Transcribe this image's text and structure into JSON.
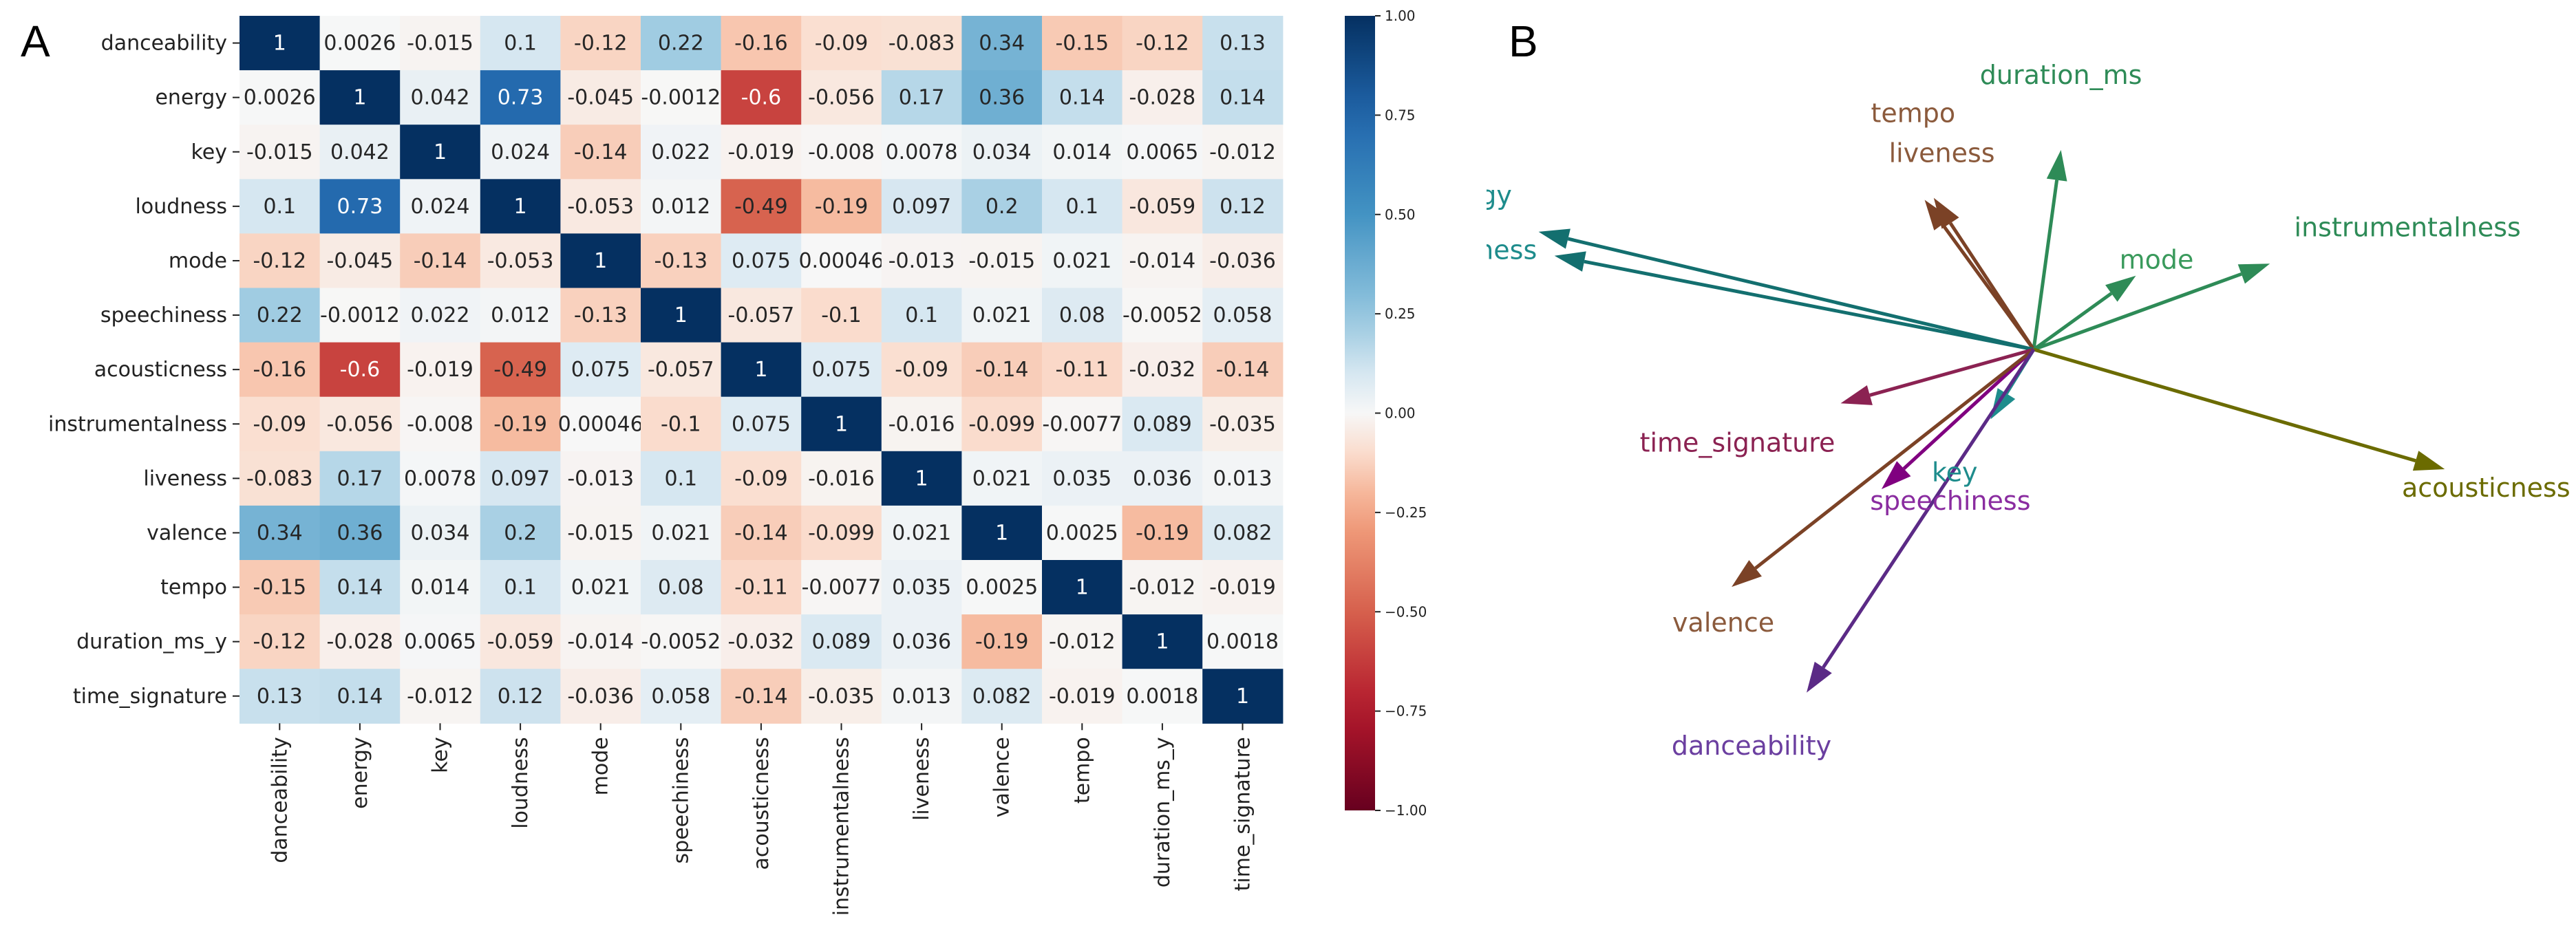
{
  "panels": {
    "a": "A",
    "b": "B"
  },
  "chart_data": [
    {
      "type": "heatmap",
      "rows": [
        "danceability",
        "energy",
        "key",
        "loudness",
        "mode",
        "speechiness",
        "acousticness",
        "instrumentalness",
        "liveness",
        "valence",
        "tempo",
        "duration_ms_y",
        "time_signature"
      ],
      "columns": [
        "danceability",
        "energy",
        "key",
        "loudness",
        "mode",
        "speechiness",
        "acousticness",
        "instrumentalness",
        "liveness",
        "valence",
        "tempo",
        "duration_ms_y",
        "time_signature"
      ],
      "values": [
        [
          1,
          0.0026,
          -0.015,
          0.1,
          -0.12,
          0.22,
          -0.16,
          -0.09,
          -0.083,
          0.34,
          -0.15,
          -0.12,
          0.13
        ],
        [
          0.0026,
          1,
          0.042,
          0.73,
          -0.045,
          -0.0012,
          -0.6,
          -0.056,
          0.17,
          0.36,
          0.14,
          -0.028,
          0.14
        ],
        [
          -0.015,
          0.042,
          1,
          0.024,
          -0.14,
          0.022,
          -0.019,
          -0.008,
          0.0078,
          0.034,
          0.014,
          0.0065,
          -0.012
        ],
        [
          0.1,
          0.73,
          0.024,
          1,
          -0.053,
          0.012,
          -0.49,
          -0.19,
          0.097,
          0.2,
          0.1,
          -0.059,
          0.12
        ],
        [
          -0.12,
          -0.045,
          -0.14,
          -0.053,
          1,
          -0.13,
          0.075,
          0.00046,
          -0.013,
          -0.015,
          0.021,
          -0.014,
          -0.036
        ],
        [
          0.22,
          -0.0012,
          0.022,
          0.012,
          -0.13,
          1,
          -0.057,
          -0.1,
          0.1,
          0.021,
          0.08,
          -0.0052,
          0.058
        ],
        [
          -0.16,
          -0.6,
          -0.019,
          -0.49,
          0.075,
          -0.057,
          1,
          0.075,
          -0.09,
          -0.14,
          -0.11,
          -0.032,
          -0.14
        ],
        [
          -0.09,
          -0.056,
          -0.008,
          -0.19,
          0.00046,
          -0.1,
          0.075,
          1,
          -0.016,
          -0.099,
          -0.0077,
          0.089,
          -0.035
        ],
        [
          -0.083,
          0.17,
          0.0078,
          0.097,
          -0.013,
          0.1,
          -0.09,
          -0.016,
          1,
          0.021,
          0.035,
          0.036,
          0.013
        ],
        [
          0.34,
          0.36,
          0.034,
          0.2,
          -0.015,
          0.021,
          -0.14,
          -0.099,
          0.021,
          1,
          0.0025,
          -0.19,
          0.082
        ],
        [
          -0.15,
          0.14,
          0.014,
          0.1,
          0.021,
          0.08,
          -0.11,
          -0.0077,
          0.035,
          0.0025,
          1,
          -0.012,
          -0.019
        ],
        [
          -0.12,
          -0.028,
          0.0065,
          -0.059,
          -0.014,
          -0.0052,
          -0.032,
          0.089,
          0.036,
          -0.19,
          -0.012,
          1,
          0.0018
        ],
        [
          0.13,
          0.14,
          -0.012,
          0.12,
          -0.036,
          0.058,
          -0.14,
          -0.035,
          0.013,
          0.082,
          -0.019,
          0.0018,
          1
        ]
      ],
      "colorbar_range": [
        -1.0,
        1.0
      ],
      "colorbar_ticks": [
        "1.00",
        "0.75",
        "0.50",
        "0.25",
        "0.00",
        "−0.25",
        "−0.50",
        "−0.75",
        "−1.00"
      ],
      "colormap": "RdBu"
    },
    {
      "type": "scatter",
      "subtype": "loading-vectors",
      "grid": false,
      "axes": "hidden",
      "vectors": [
        {
          "name": "duration_ms",
          "x": 0.12,
          "y": 1.0,
          "color": "#2e8b57",
          "label_color": "#2e8b57"
        },
        {
          "name": "tempo",
          "x": -0.44,
          "y": 0.76,
          "color": "#7b4226",
          "label_color": "#8b5a3c"
        },
        {
          "name": "liveness",
          "x": -0.48,
          "y": 0.75,
          "color": "#7b4226",
          "label_color": "#8b5a3c"
        },
        {
          "name": "energy",
          "x": -2.18,
          "y": 0.59,
          "color": "#136f6f",
          "label_color": "#1e8c8c"
        },
        {
          "name": "loudness",
          "x": -2.11,
          "y": 0.47,
          "color": "#136f6f",
          "label_color": "#1e8c8c"
        },
        {
          "name": "mode",
          "x": 0.45,
          "y": 0.37,
          "color": "#2e8b57",
          "label_color": "#3a9a5c"
        },
        {
          "name": "instrumentalness",
          "x": 1.04,
          "y": 0.43,
          "color": "#2e8b57",
          "label_color": "#2e8b57"
        },
        {
          "name": "time_signature",
          "x": -0.85,
          "y": -0.27,
          "color": "#8b2252",
          "label_color": "#8b2252"
        },
        {
          "name": "key",
          "x": -0.19,
          "y": -0.35,
          "color": "#1e8c8c",
          "label_color": "#1e8c8c"
        },
        {
          "name": "acousticness",
          "x": 1.81,
          "y": -0.6,
          "color": "#6b6b00",
          "label_color": "#6b6b00"
        },
        {
          "name": "speechiness",
          "x": -0.67,
          "y": -0.7,
          "color": "#800080",
          "label_color": "#8a2ca0"
        },
        {
          "name": "valence",
          "x": -1.33,
          "y": -1.19,
          "color": "#7b4226",
          "label_color": "#8b5a3c"
        },
        {
          "name": "danceability",
          "x": -1.0,
          "y": -1.72,
          "color": "#5b2a86",
          "label_color": "#6b3fa0"
        }
      ]
    }
  ]
}
